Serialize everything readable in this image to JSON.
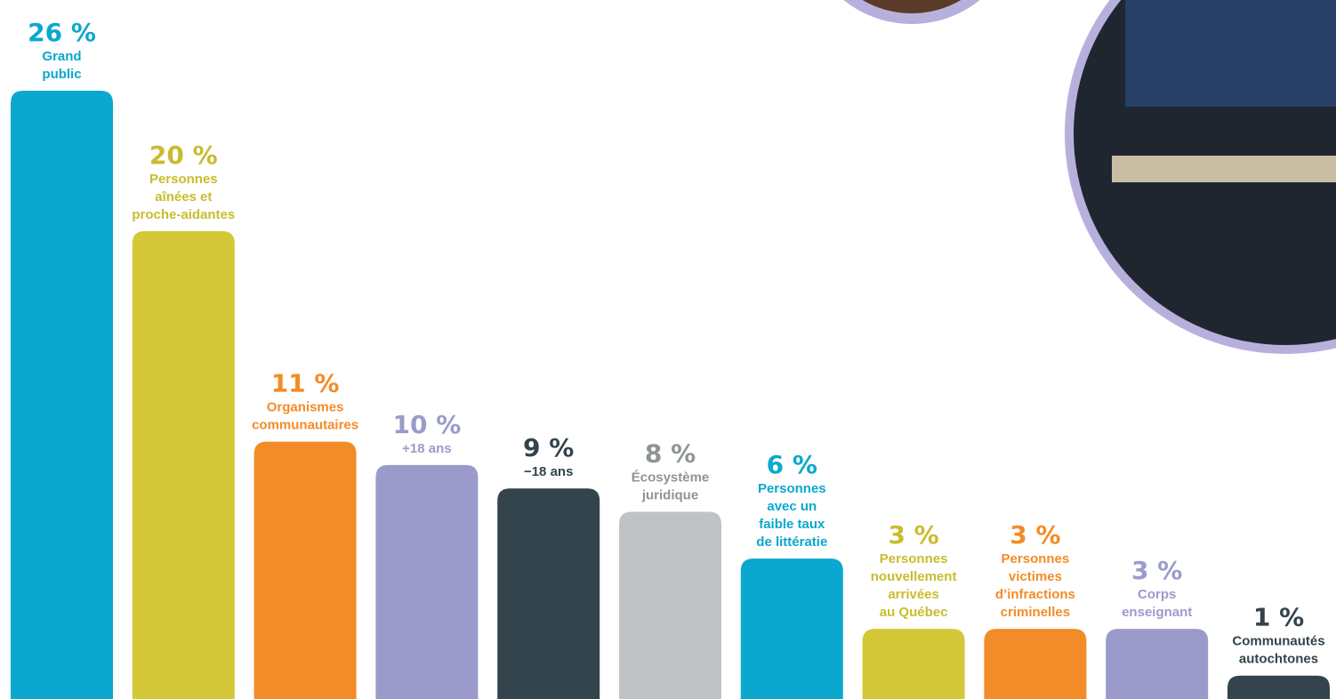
{
  "chart_data": {
    "type": "bar",
    "categories": [
      "Grand public",
      "Personnes aînées et proche-aidantes",
      "Organismes communautaires",
      "+18 ans",
      "−18 ans",
      "Écosystème juridique",
      "Personnes avec un faible taux de littératie",
      "Personnes nouvellement arrivées au Québec",
      "Personnes victimes d’infractions criminelles",
      "Corps enseignant",
      "Communautés autochtones"
    ],
    "label_lines": [
      [
        "Grand",
        "public"
      ],
      [
        "Personnes",
        "aînées et",
        "proche-aidantes"
      ],
      [
        "Organismes",
        "communautaires"
      ],
      [
        "+18 ans"
      ],
      [
        "−18 ans"
      ],
      [
        "Écosystème",
        "juridique"
      ],
      [
        "Personnes",
        "avec un",
        "faible taux",
        "de littératie"
      ],
      [
        "Personnes",
        "nouvellement",
        "arrivées",
        "au Québec"
      ],
      [
        "Personnes",
        "victimes",
        "d’infractions",
        "criminelles"
      ],
      [
        "Corps",
        "enseignant"
      ],
      [
        "Communautés",
        "autochtones"
      ]
    ],
    "values": [
      26,
      20,
      11,
      10,
      9,
      8,
      6,
      3,
      3,
      3,
      1
    ],
    "value_labels": [
      "26 %",
      "20 %",
      "11 %",
      "10 %",
      "9 %",
      "8 %",
      "6 %",
      "3 %",
      "3 %",
      "3 %",
      "1 %"
    ],
    "colors": [
      "#0aa8cf",
      "#d4c738",
      "#f28c28",
      "#9b9bcb",
      "#34444d",
      "#bfc3c5",
      "#0aa8cf",
      "#d4c738",
      "#f28c28",
      "#9b9bcb",
      "#34444d"
    ],
    "label_colors": [
      "#0aa8cf",
      "#c9bc2e",
      "#f28c28",
      "#9b9bcb",
      "#34444d",
      "#8f9497",
      "#0aa8cf",
      "#c9bc2e",
      "#f28c28",
      "#9b9bcb",
      "#34444d"
    ],
    "ylim": [
      0,
      26
    ],
    "grid": false,
    "legend": "none"
  },
  "decor": {
    "photo_ring_color": "#b8b0dc",
    "photo_bg": "#1f2630"
  }
}
